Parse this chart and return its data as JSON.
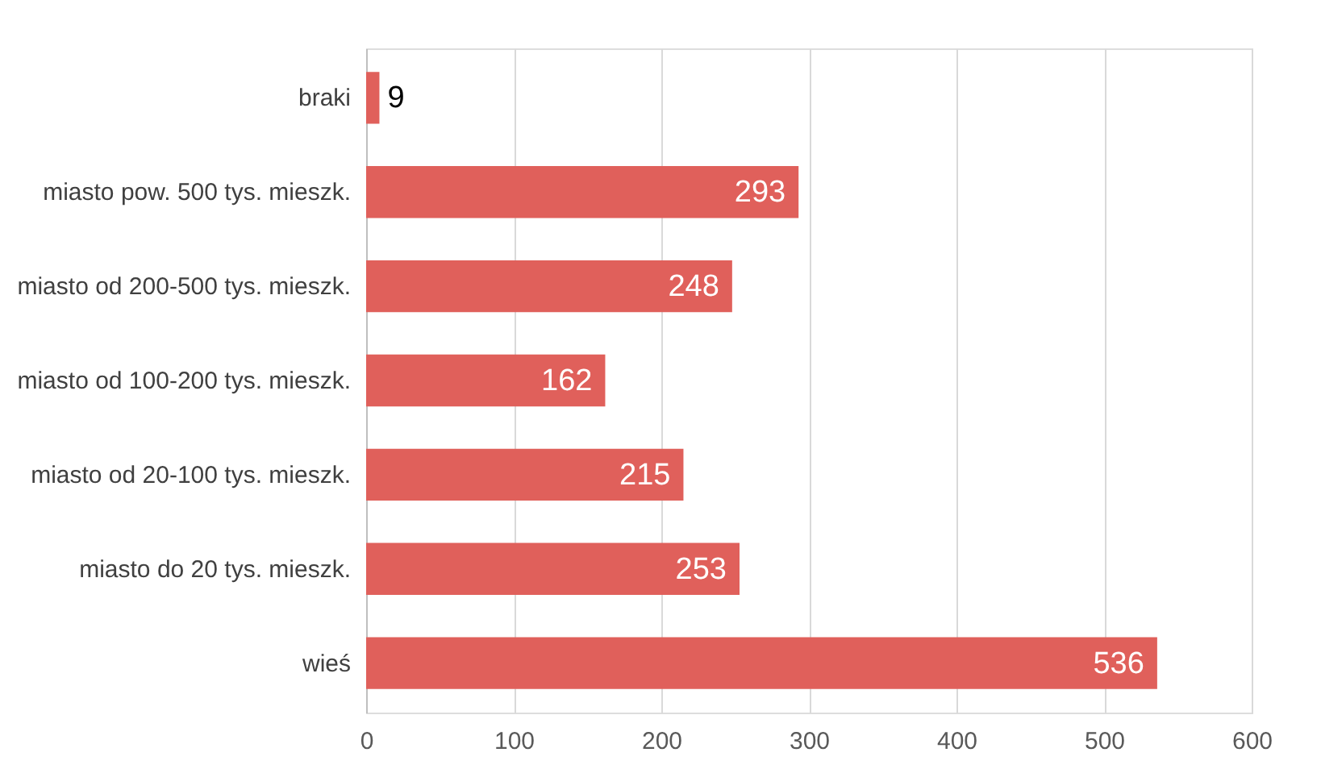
{
  "chart_data": {
    "type": "bar",
    "orientation": "horizontal",
    "categories": [
      "braki",
      "miasto pow. 500 tys. mieszk.",
      "miasto od 200-500 tys. mieszk.",
      "miasto od 100-200 tys. mieszk.",
      "miasto od 20-100 tys. mieszk.",
      "miasto do 20 tys. mieszk.",
      "wieś"
    ],
    "values": [
      9,
      293,
      248,
      162,
      215,
      253,
      536
    ],
    "color": "#e0605b",
    "xlim": [
      0,
      600
    ],
    "xticks": [
      0,
      100,
      200,
      300,
      400,
      500,
      600
    ],
    "grid": "x",
    "data_labels": true
  }
}
